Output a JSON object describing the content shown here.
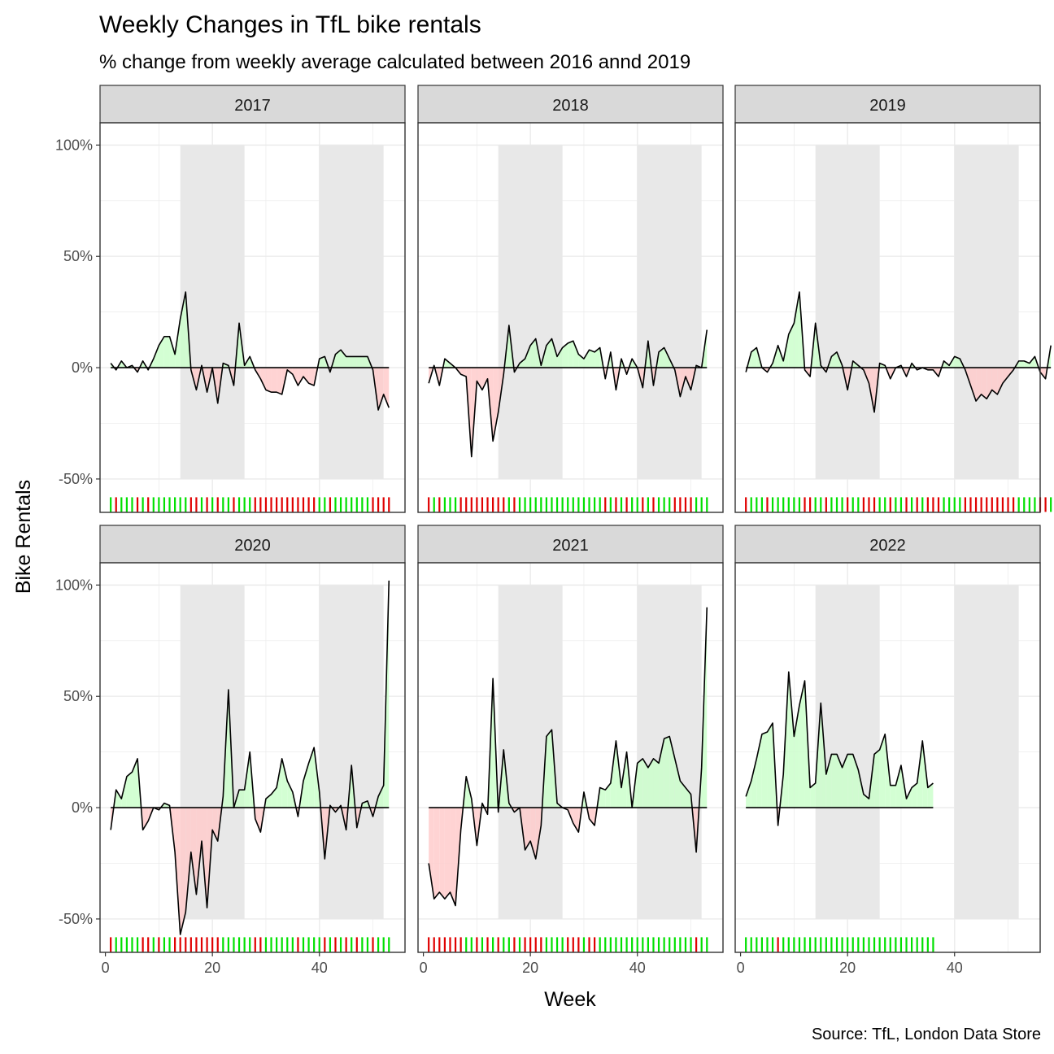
{
  "chart_data": {
    "type": "area",
    "title": "Weekly Changes in TfL bike rentals",
    "subtitle": "% change from weekly average calculated between 2016 annd 2019",
    "caption": "Source: TfL, London Data Store",
    "xlabel": "Week",
    "ylabel": "Bike Rentals",
    "xlim": [
      -1,
      56
    ],
    "ylim": [
      -0.65,
      1.1
    ],
    "x_ticks": [
      0,
      20,
      40
    ],
    "x_tick_labels": [
      "0",
      "20",
      "40"
    ],
    "y_ticks": [
      -0.5,
      0,
      0.5,
      1
    ],
    "y_tick_labels": [
      "-50%",
      "0%",
      "50%",
      "100%"
    ],
    "shaded_week_ranges": [
      [
        14,
        26
      ],
      [
        40,
        52
      ]
    ],
    "shade_y_range": [
      -0.5,
      1.0
    ],
    "rug_y": -0.615,
    "colors": {
      "positive_fill": "#ccffcc",
      "negative_fill": "#ffcccc",
      "positive_rug": "#00e000",
      "negative_rug": "#e00000",
      "shaded_band": "#e8e8e8",
      "strip_bg": "#d9d9d9",
      "line": "#000000"
    },
    "panels": [
      {
        "year": "2017",
        "values": [
          0.02,
          -0.01,
          0.03,
          0.0,
          0.01,
          -0.02,
          0.03,
          -0.01,
          0.04,
          0.1,
          0.14,
          0.14,
          0.06,
          0.22,
          0.34,
          -0.01,
          -0.1,
          0.01,
          -0.11,
          0.0,
          -0.16,
          0.02,
          0.01,
          -0.08,
          0.2,
          0.01,
          0.05,
          -0.01,
          -0.05,
          -0.1,
          -0.11,
          -0.11,
          -0.12,
          -0.01,
          -0.03,
          -0.08,
          -0.04,
          -0.07,
          -0.08,
          0.04,
          0.05,
          -0.02,
          0.06,
          0.08,
          0.05,
          0.05,
          0.05,
          0.05,
          0.05,
          -0.01,
          -0.19,
          -0.12,
          -0.18
        ]
      },
      {
        "year": "2018",
        "values": [
          -0.07,
          0.01,
          -0.08,
          0.04,
          0.02,
          0.0,
          -0.03,
          -0.04,
          -0.4,
          -0.06,
          -0.1,
          -0.05,
          -0.33,
          -0.2,
          -0.03,
          0.19,
          -0.02,
          0.02,
          0.04,
          0.1,
          0.13,
          0.01,
          0.1,
          0.13,
          0.05,
          0.09,
          0.11,
          0.12,
          0.06,
          0.04,
          0.08,
          0.07,
          0.09,
          -0.05,
          0.07,
          -0.1,
          0.04,
          -0.03,
          0.04,
          0.0,
          -0.09,
          0.12,
          -0.08,
          0.07,
          0.09,
          0.04,
          -0.01,
          -0.13,
          -0.04,
          -0.1,
          0.01,
          0.0,
          0.17
        ]
      },
      {
        "year": "2019",
        "values": [
          -0.02,
          0.07,
          0.09,
          0.0,
          -0.02,
          0.02,
          0.1,
          0.03,
          0.15,
          0.2,
          0.34,
          -0.01,
          -0.04,
          0.2,
          0.01,
          -0.02,
          0.05,
          0.07,
          0.01,
          -0.1,
          0.03,
          0.01,
          -0.01,
          -0.07,
          -0.2,
          0.02,
          0.01,
          -0.05,
          0.0,
          0.01,
          -0.04,
          0.02,
          -0.01,
          0.0,
          -0.01,
          -0.01,
          -0.04,
          0.03,
          0.01,
          0.05,
          0.04,
          -0.01,
          -0.08,
          -0.15,
          -0.12,
          -0.14,
          -0.1,
          -0.12,
          -0.07,
          -0.04,
          -0.01,
          0.03,
          0.03,
          0.02,
          0.05,
          -0.02,
          -0.05,
          0.1
        ]
      },
      {
        "year": "2020",
        "values": [
          -0.1,
          0.08,
          0.04,
          0.14,
          0.16,
          0.22,
          -0.1,
          -0.06,
          0.0,
          -0.01,
          0.02,
          0.01,
          -0.2,
          -0.57,
          -0.47,
          -0.2,
          -0.39,
          -0.15,
          -0.45,
          -0.1,
          -0.15,
          0.05,
          0.53,
          0.0,
          0.08,
          0.08,
          0.25,
          -0.05,
          -0.11,
          0.04,
          0.06,
          0.09,
          0.22,
          0.12,
          0.07,
          -0.04,
          0.12,
          0.2,
          0.27,
          0.07,
          -0.23,
          0.01,
          -0.02,
          0.01,
          -0.1,
          0.19,
          -0.09,
          0.02,
          0.03,
          -0.04,
          0.05,
          0.1,
          1.02
        ]
      },
      {
        "year": "2021",
        "values": [
          -0.25,
          -0.41,
          -0.38,
          -0.41,
          -0.38,
          -0.44,
          -0.1,
          0.14,
          0.04,
          -0.17,
          0.02,
          -0.03,
          0.58,
          -0.02,
          0.26,
          0.02,
          -0.02,
          0.0,
          -0.19,
          -0.15,
          -0.23,
          -0.08,
          0.32,
          0.35,
          0.02,
          0.0,
          -0.01,
          -0.07,
          -0.11,
          0.07,
          -0.05,
          -0.08,
          0.09,
          0.08,
          0.11,
          0.3,
          0.09,
          0.25,
          0.0,
          0.2,
          0.22,
          0.18,
          0.22,
          0.2,
          0.31,
          0.32,
          0.22,
          0.12,
          0.09,
          0.06,
          -0.2,
          0.18,
          0.9
        ]
      },
      {
        "year": "2022",
        "values": [
          0.05,
          0.12,
          0.22,
          0.33,
          0.34,
          0.38,
          -0.08,
          0.15,
          0.61,
          0.32,
          0.46,
          0.57,
          0.09,
          0.11,
          0.47,
          0.15,
          0.24,
          0.24,
          0.18,
          0.24,
          0.24,
          0.17,
          0.06,
          0.04,
          0.24,
          0.26,
          0.33,
          0.1,
          0.1,
          0.19,
          0.04,
          0.09,
          0.11,
          0.3,
          0.09,
          0.11
        ]
      }
    ]
  }
}
